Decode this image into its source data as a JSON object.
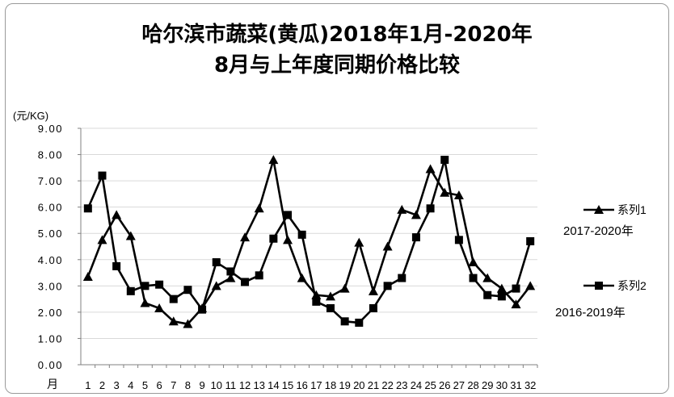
{
  "chart_data": {
    "type": "line",
    "title_line1": "哈尔滨市蔬菜(黄瓜)2018年1月-2020年",
    "title_line2": "8月与上年度同期价格比较",
    "ylabel": "(元/KG)",
    "xlabel": "月",
    "ylim": [
      0,
      9
    ],
    "yticks": [
      "0.00",
      "1.00",
      "2.00",
      "3.00",
      "4.00",
      "5.00",
      "6.00",
      "7.00",
      "8.00",
      "9.00"
    ],
    "categories": [
      "1",
      "2",
      "3",
      "4",
      "5",
      "6",
      "7",
      "8",
      "9",
      "10",
      "11",
      "12",
      "13",
      "14",
      "15",
      "16",
      "17",
      "18",
      "19",
      "20",
      "21",
      "22",
      "23",
      "24",
      "25",
      "26",
      "27",
      "28",
      "29",
      "30",
      "31",
      "32"
    ],
    "grid": true,
    "legend_position": "right",
    "series": [
      {
        "name": "系列1",
        "annotation": "2017-2020年",
        "marker": "triangle",
        "values": [
          3.35,
          4.75,
          5.7,
          4.9,
          2.35,
          2.15,
          1.65,
          1.55,
          2.15,
          3.0,
          3.3,
          4.85,
          5.95,
          7.8,
          4.75,
          3.3,
          2.65,
          2.6,
          2.9,
          4.65,
          2.8,
          4.5,
          5.9,
          5.7,
          7.45,
          6.55,
          6.45,
          3.9,
          3.3,
          2.9,
          2.3,
          3.0
        ]
      },
      {
        "name": "系列2",
        "annotation": "2016-2019年",
        "marker": "square",
        "values": [
          5.95,
          7.2,
          3.75,
          2.8,
          3.0,
          3.05,
          2.5,
          2.85,
          2.1,
          3.9,
          3.55,
          3.15,
          3.4,
          4.8,
          5.7,
          4.95,
          2.4,
          2.15,
          1.65,
          1.6,
          2.15,
          3.0,
          3.3,
          4.85,
          5.95,
          7.8,
          4.75,
          3.3,
          2.65,
          2.6,
          2.9,
          4.7
        ]
      }
    ],
    "colors": {
      "line": "#000000",
      "grid": "#d9d9d9",
      "frame": "#9a9a9a"
    }
  }
}
